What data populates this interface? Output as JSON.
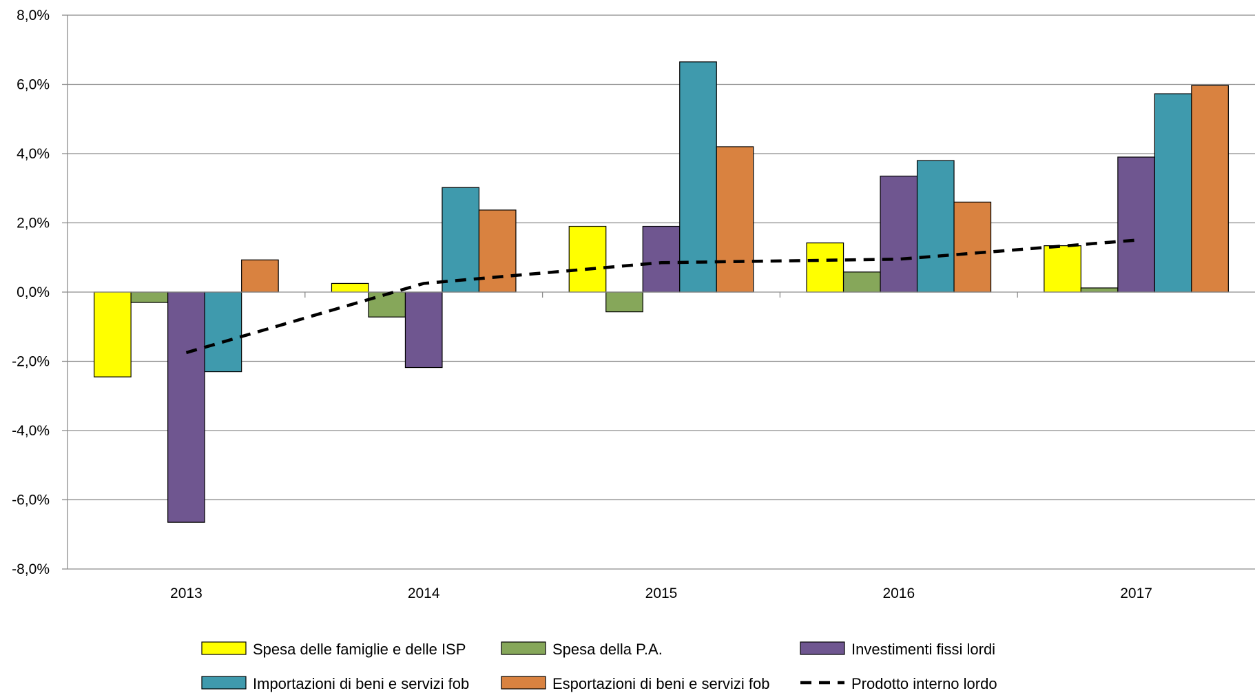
{
  "chart_data": {
    "type": "bar",
    "categories": [
      "2013",
      "2014",
      "2015",
      "2016",
      "2017"
    ],
    "ylim": [
      -8,
      8
    ],
    "yticks": [
      {
        "value": 8,
        "label": "8,0%"
      },
      {
        "value": 6,
        "label": "6,0%"
      },
      {
        "value": 4,
        "label": "4,0%"
      },
      {
        "value": 2,
        "label": "2,0%"
      },
      {
        "value": 0,
        "label": "0,0%"
      },
      {
        "value": -2,
        "label": "-2,0%"
      },
      {
        "value": -4,
        "label": "-4,0%"
      },
      {
        "value": -6,
        "label": "-6,0%"
      },
      {
        "value": -8,
        "label": "-8,0%"
      }
    ],
    "grid": true,
    "legend_position": "bottom",
    "series": [
      {
        "name": "Spesa delle famiglie e delle ISP",
        "type": "bar",
        "color": "#ffff00",
        "values": [
          -2.45,
          0.25,
          1.9,
          1.42,
          1.34
        ]
      },
      {
        "name": "Spesa della P.A.",
        "type": "bar",
        "color": "#86a75a",
        "values": [
          -0.3,
          -0.72,
          -0.57,
          0.58,
          0.12
        ]
      },
      {
        "name": "Investimenti fissi lordi",
        "type": "bar",
        "color": "#6f5690",
        "values": [
          -6.65,
          -2.18,
          1.9,
          3.35,
          3.9
        ]
      },
      {
        "name": "Importazioni di beni e servizi fob",
        "type": "bar",
        "color": "#3f9aad",
        "values": [
          -2.3,
          3.02,
          6.65,
          3.8,
          5.73
        ]
      },
      {
        "name": "Esportazioni di beni e servizi fob",
        "type": "bar",
        "color": "#d98240",
        "values": [
          0.93,
          2.37,
          4.2,
          2.6,
          5.97
        ]
      },
      {
        "name": "Prodotto interno lordo",
        "type": "line",
        "style": "dashed",
        "color": "#000000",
        "values": [
          -1.75,
          0.25,
          0.85,
          0.95,
          1.5
        ]
      }
    ]
  }
}
